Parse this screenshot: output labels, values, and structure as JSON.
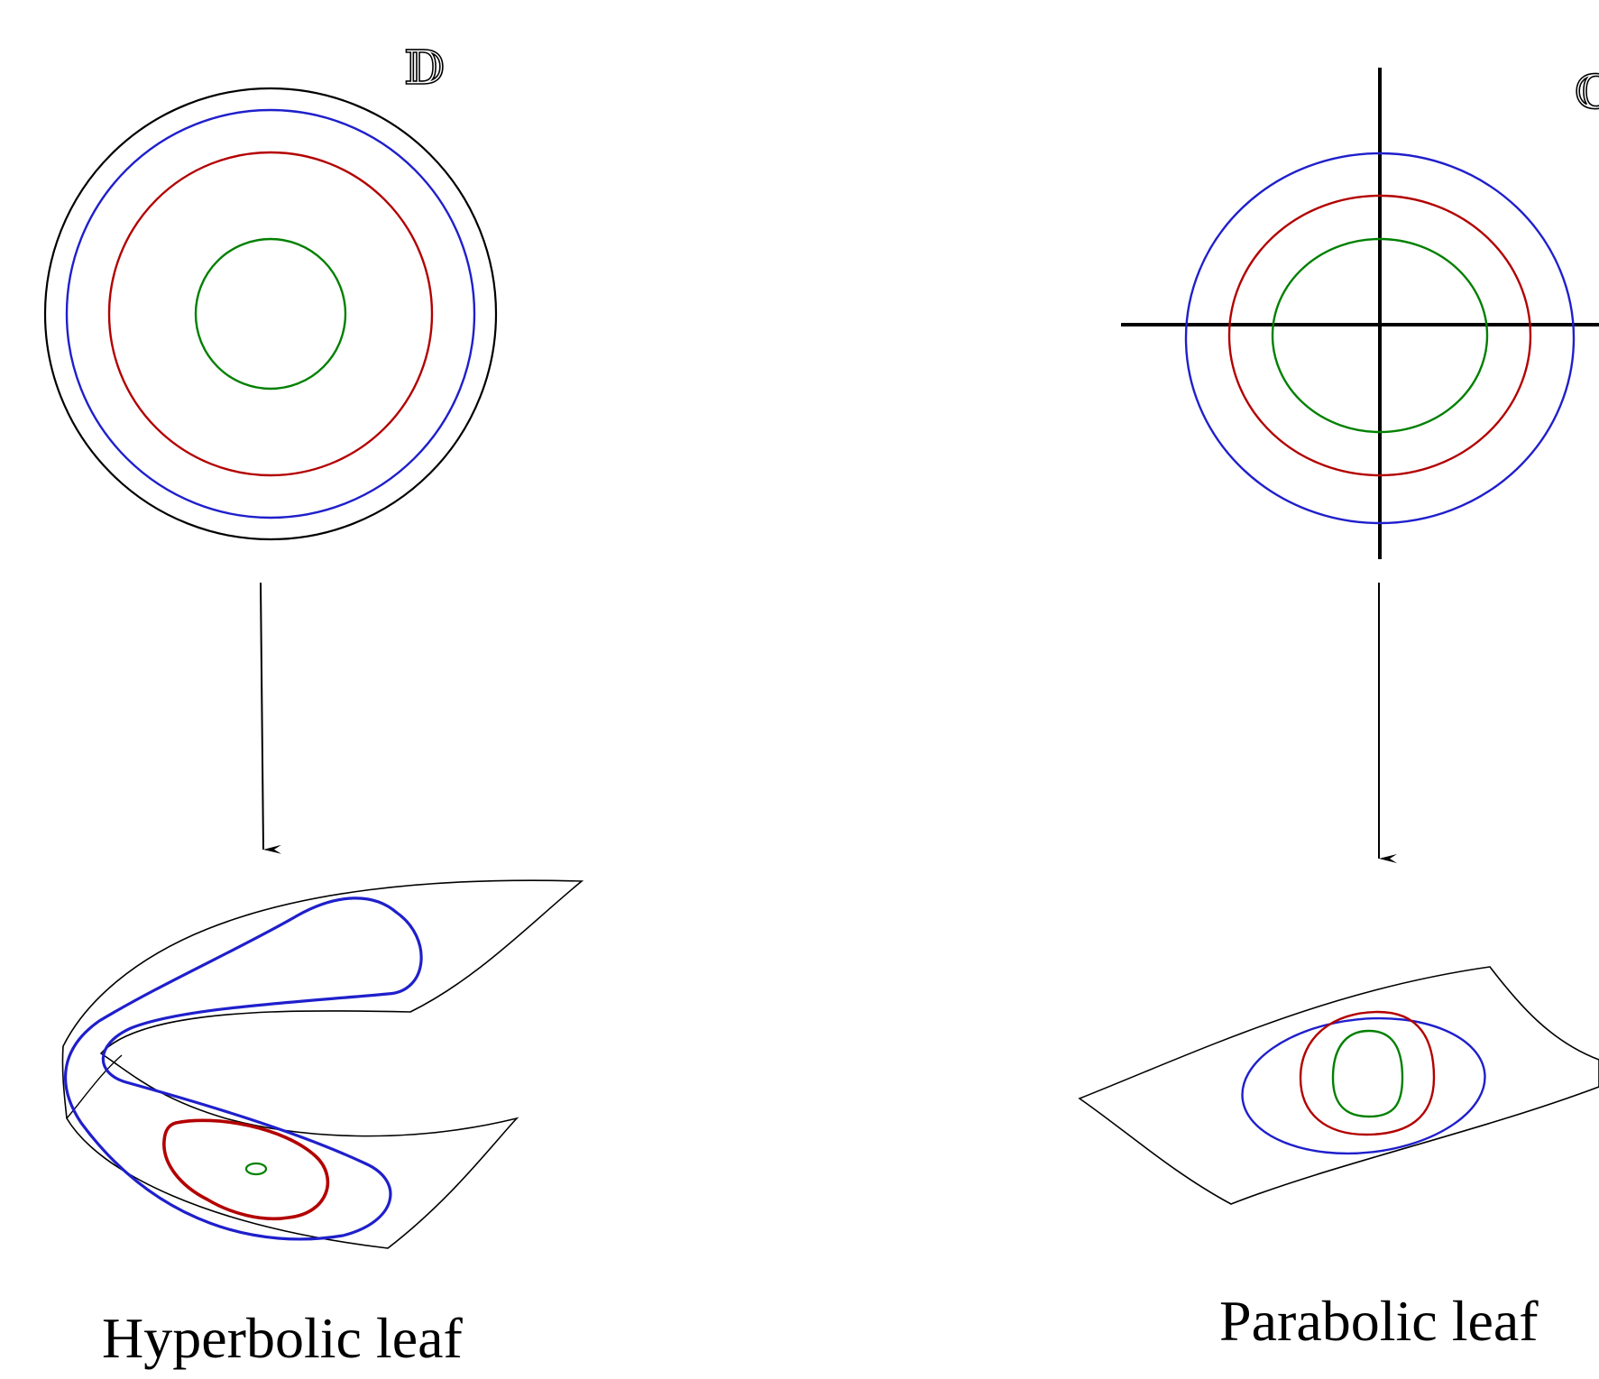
{
  "left_panel": {
    "domain_symbol": "𝔻",
    "caption": "Hyperbolic leaf"
  },
  "right_panel": {
    "domain_symbol": "ℂ",
    "caption": "Parabolic leaf"
  },
  "colors": {
    "outer": "#1f1fcc",
    "middle": "#b30000",
    "inner": "#008000",
    "boundary": "#000000"
  }
}
